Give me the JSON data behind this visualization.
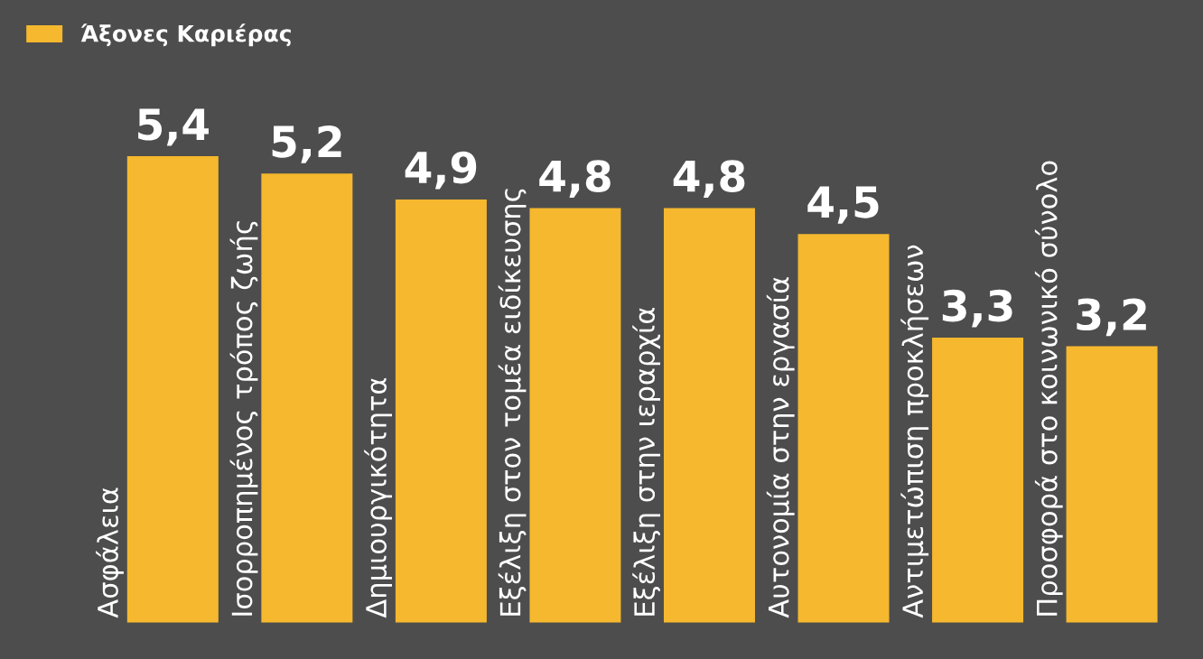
{
  "chart_data": {
    "type": "bar",
    "categories": [
      "Ασφάλεια",
      "Ισορροπημένος τρόπος ζωής",
      "Δημιουργικότητα",
      "Εξέλιξη στον τομέα ειδίκευσης",
      "Εξέλιξη στην ιεραρχία",
      "Αυτονομία στην εργασία",
      "Αντιμετώπιση προκλήσεων",
      "Προσφορά στο κοινωνικό σύνολο"
    ],
    "series": [
      {
        "name": "Άξονες Καριέρας",
        "color": "#f5b82e",
        "values": [
          5.4,
          5.2,
          4.9,
          4.8,
          4.8,
          4.5,
          3.3,
          3.2
        ],
        "value_labels": [
          "5,4",
          "5,2",
          "4,9",
          "4,8",
          "4,8",
          "4,5",
          "3,3",
          "3,2"
        ]
      }
    ],
    "legend": "top left"
  }
}
